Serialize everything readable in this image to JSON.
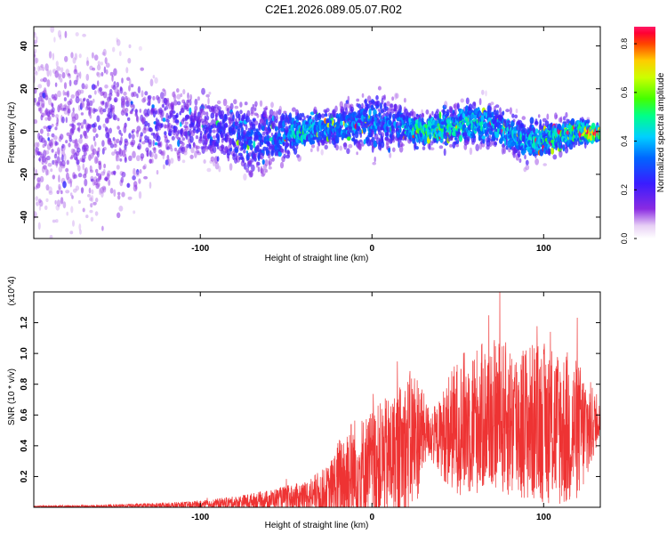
{
  "title": "C2E1.2026.089.05.07.R02",
  "chart_data": [
    {
      "type": "heatmap",
      "xlabel": "Height of straight line (km)",
      "ylabel": "Frequency (Hz)",
      "xlim": [
        -197,
        133
      ],
      "ylim": [
        -50,
        49
      ],
      "x_ticks": [
        -100,
        0,
        100
      ],
      "y_ticks": [
        -40,
        -20,
        0,
        20,
        40
      ],
      "colorbar": {
        "label": "Normalized spectral amplitude",
        "range": [
          0,
          0.87
        ],
        "ticks": [
          0.0,
          0.2,
          0.4,
          0.6,
          0.8
        ]
      },
      "ridge_profile": [
        {
          "x": -190,
          "center": 0,
          "spread": 45,
          "density": 0.75,
          "level": 0.08
        },
        {
          "x": -160,
          "center": 0,
          "spread": 40,
          "density": 0.7,
          "level": 0.1
        },
        {
          "x": -135,
          "center": 2,
          "spread": 28,
          "density": 0.45,
          "level": 0.12
        },
        {
          "x": -120,
          "center": 3,
          "spread": 18,
          "density": 0.5,
          "level": 0.14
        },
        {
          "x": -100,
          "center": 2,
          "spread": 14,
          "density": 0.6,
          "level": 0.16
        },
        {
          "x": -85,
          "center": 0,
          "spread": 14,
          "density": 0.65,
          "level": 0.2
        },
        {
          "x": -70,
          "center": -4,
          "spread": 16,
          "density": 0.7,
          "level": 0.22
        },
        {
          "x": -55,
          "center": -2,
          "spread": 12,
          "density": 0.7,
          "level": 0.24
        },
        {
          "x": -40,
          "center": 0,
          "spread": 8,
          "density": 0.75,
          "level": 0.38
        },
        {
          "x": -25,
          "center": 2,
          "spread": 8,
          "density": 0.7,
          "level": 0.3
        },
        {
          "x": -10,
          "center": 3,
          "spread": 10,
          "density": 0.7,
          "level": 0.28
        },
        {
          "x": 0,
          "center": 4,
          "spread": 14,
          "density": 0.75,
          "level": 0.28
        },
        {
          "x": 15,
          "center": 3,
          "spread": 10,
          "density": 0.7,
          "level": 0.26
        },
        {
          "x": 30,
          "center": 0,
          "spread": 6,
          "density": 0.8,
          "level": 0.45
        },
        {
          "x": 45,
          "center": 2,
          "spread": 8,
          "density": 0.75,
          "level": 0.38
        },
        {
          "x": 60,
          "center": 4,
          "spread": 10,
          "density": 0.75,
          "level": 0.35
        },
        {
          "x": 75,
          "center": 2,
          "spread": 9,
          "density": 0.75,
          "level": 0.32
        },
        {
          "x": 90,
          "center": -5,
          "spread": 9,
          "density": 0.8,
          "level": 0.34
        },
        {
          "x": 105,
          "center": -3,
          "spread": 8,
          "density": 0.8,
          "level": 0.4
        },
        {
          "x": 120,
          "center": 0,
          "spread": 6,
          "density": 0.8,
          "level": 0.42
        },
        {
          "x": 133,
          "center": -1,
          "spread": 3,
          "density": 0.9,
          "level": 0.8
        }
      ]
    },
    {
      "type": "line",
      "xlabel": "Height of straight line (km)",
      "ylabel": "SNR (10 * v/v)",
      "y_multiplier": "(x10^4)",
      "xlim": [
        -197,
        133
      ],
      "ylim": [
        0,
        1.4
      ],
      "x_ticks": [
        -100,
        0,
        100
      ],
      "y_ticks": [
        0.2,
        0.4,
        0.6,
        0.8,
        1.0,
        1.2
      ],
      "color": "#ee3333",
      "envelope": [
        {
          "x": -197,
          "base": 0.005,
          "spread": 0.01
        },
        {
          "x": -160,
          "base": 0.005,
          "spread": 0.015
        },
        {
          "x": -140,
          "base": 0.01,
          "spread": 0.02
        },
        {
          "x": -120,
          "base": 0.01,
          "spread": 0.03
        },
        {
          "x": -100,
          "base": 0.015,
          "spread": 0.04
        },
        {
          "x": -80,
          "base": 0.03,
          "spread": 0.06
        },
        {
          "x": -60,
          "base": 0.05,
          "spread": 0.09
        },
        {
          "x": -40,
          "base": 0.07,
          "spread": 0.14
        },
        {
          "x": -25,
          "base": 0.1,
          "spread": 0.25
        },
        {
          "x": -15,
          "base": 0.2,
          "spread": 0.55
        },
        {
          "x": -5,
          "base": 0.25,
          "spread": 0.5
        },
        {
          "x": 5,
          "base": 0.3,
          "spread": 0.55
        },
        {
          "x": 15,
          "base": 0.35,
          "spread": 0.6
        },
        {
          "x": 25,
          "base": 0.45,
          "spread": 0.7
        },
        {
          "x": 32,
          "base": 0.5,
          "spread": 0.25
        },
        {
          "x": 38,
          "base": 0.45,
          "spread": 0.3
        },
        {
          "x": 45,
          "base": 0.5,
          "spread": 0.55
        },
        {
          "x": 55,
          "base": 0.55,
          "spread": 0.7
        },
        {
          "x": 70,
          "base": 0.6,
          "spread": 0.7
        },
        {
          "x": 85,
          "base": 0.55,
          "spread": 0.75
        },
        {
          "x": 100,
          "base": 0.55,
          "spread": 0.75
        },
        {
          "x": 115,
          "base": 0.5,
          "spread": 0.75
        },
        {
          "x": 125,
          "base": 0.5,
          "spread": 0.55
        },
        {
          "x": 133,
          "base": 0.58,
          "spread": 0.12
        }
      ]
    }
  ]
}
